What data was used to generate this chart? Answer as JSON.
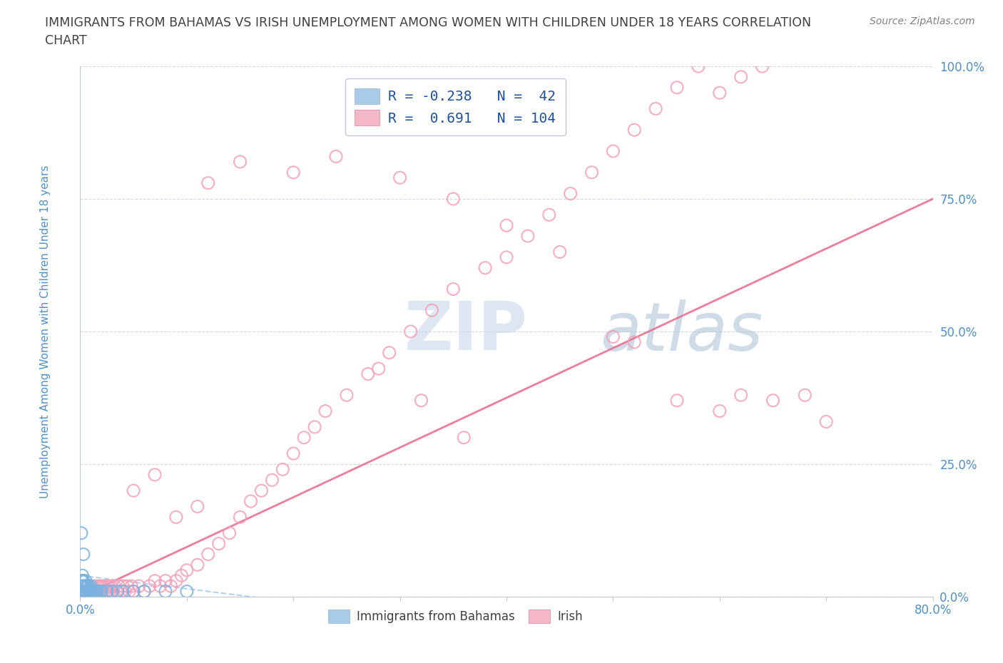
{
  "title_line1": "IMMIGRANTS FROM BAHAMAS VS IRISH UNEMPLOYMENT AMONG WOMEN WITH CHILDREN UNDER 18 YEARS CORRELATION",
  "title_line2": "CHART",
  "source": "Source: ZipAtlas.com",
  "ylabel": "Unemployment Among Women with Children Under 18 years",
  "x_min": 0.0,
  "x_max": 0.8,
  "y_min": 0.0,
  "y_max": 1.0,
  "bahamas_R": -0.238,
  "bahamas_N": 42,
  "irish_R": 0.691,
  "irish_N": 104,
  "scatter_color_bahamas": "#7ab3e0",
  "scatter_color_irish": "#f4a0b8",
  "line_color_bahamas": "#a0c8e8",
  "line_color_irish": "#e87090",
  "legend_color_bahamas": "#a8cce8",
  "legend_color_irish": "#f4b8c8",
  "watermark_zip": "ZIP",
  "watermark_atlas": "atlas",
  "watermark_color_zip": "#c8d8e8",
  "watermark_color_atlas": "#b0c8d8",
  "background_color": "#ffffff",
  "title_color": "#404040",
  "axis_label_color": "#5090c8",
  "tick_label_color": "#5090c8",
  "legend_text_color": "#2050a0",
  "grid_color": "#d0d8e8",
  "irish_x": [
    0.003,
    0.004,
    0.005,
    0.006,
    0.007,
    0.008,
    0.009,
    0.01,
    0.011,
    0.012,
    0.013,
    0.014,
    0.015,
    0.016,
    0.017,
    0.018,
    0.019,
    0.02,
    0.021,
    0.022,
    0.023,
    0.024,
    0.025,
    0.026,
    0.027,
    0.028,
    0.029,
    0.03,
    0.032,
    0.034,
    0.036,
    0.038,
    0.04,
    0.042,
    0.044,
    0.046,
    0.048,
    0.05,
    0.055,
    0.06,
    0.065,
    0.07,
    0.075,
    0.08,
    0.085,
    0.09,
    0.095,
    0.1,
    0.11,
    0.12,
    0.13,
    0.14,
    0.15,
    0.16,
    0.17,
    0.18,
    0.19,
    0.2,
    0.21,
    0.22,
    0.23,
    0.25,
    0.27,
    0.29,
    0.31,
    0.33,
    0.35,
    0.38,
    0.4,
    0.42,
    0.44,
    0.46,
    0.48,
    0.5,
    0.52,
    0.54,
    0.56,
    0.58,
    0.6,
    0.62,
    0.64,
    0.12,
    0.15,
    0.2,
    0.24,
    0.3,
    0.35,
    0.4,
    0.45,
    0.5,
    0.28,
    0.32,
    0.36,
    0.52,
    0.56,
    0.6,
    0.62,
    0.65,
    0.68,
    0.7,
    0.05,
    0.07,
    0.09,
    0.11
  ],
  "irish_y": [
    0.01,
    0.01,
    0.02,
    0.01,
    0.02,
    0.01,
    0.01,
    0.02,
    0.01,
    0.02,
    0.01,
    0.01,
    0.02,
    0.01,
    0.02,
    0.01,
    0.02,
    0.01,
    0.02,
    0.01,
    0.02,
    0.01,
    0.02,
    0.01,
    0.02,
    0.01,
    0.02,
    0.01,
    0.02,
    0.01,
    0.02,
    0.01,
    0.02,
    0.01,
    0.02,
    0.01,
    0.02,
    0.01,
    0.02,
    0.01,
    0.02,
    0.03,
    0.02,
    0.03,
    0.02,
    0.03,
    0.04,
    0.05,
    0.06,
    0.08,
    0.1,
    0.12,
    0.15,
    0.18,
    0.2,
    0.22,
    0.24,
    0.27,
    0.3,
    0.32,
    0.35,
    0.38,
    0.42,
    0.46,
    0.5,
    0.54,
    0.58,
    0.62,
    0.64,
    0.68,
    0.72,
    0.76,
    0.8,
    0.84,
    0.88,
    0.92,
    0.96,
    1.0,
    0.95,
    0.98,
    1.0,
    0.78,
    0.82,
    0.8,
    0.83,
    0.79,
    0.75,
    0.7,
    0.65,
    0.49,
    0.43,
    0.37,
    0.3,
    0.48,
    0.37,
    0.35,
    0.38,
    0.37,
    0.38,
    0.33,
    0.2,
    0.23,
    0.15,
    0.17
  ],
  "bahamas_x": [
    0.001,
    0.001,
    0.001,
    0.002,
    0.002,
    0.002,
    0.002,
    0.003,
    0.003,
    0.003,
    0.004,
    0.004,
    0.005,
    0.005,
    0.005,
    0.006,
    0.006,
    0.007,
    0.007,
    0.008,
    0.008,
    0.009,
    0.01,
    0.01,
    0.011,
    0.012,
    0.013,
    0.014,
    0.015,
    0.016,
    0.018,
    0.02,
    0.025,
    0.03,
    0.035,
    0.04,
    0.05,
    0.06,
    0.08,
    0.1,
    0.001,
    0.003
  ],
  "bahamas_y": [
    0.01,
    0.02,
    0.03,
    0.01,
    0.02,
    0.03,
    0.04,
    0.01,
    0.02,
    0.03,
    0.01,
    0.02,
    0.01,
    0.02,
    0.03,
    0.01,
    0.02,
    0.01,
    0.02,
    0.01,
    0.02,
    0.01,
    0.01,
    0.02,
    0.01,
    0.01,
    0.01,
    0.01,
    0.01,
    0.01,
    0.01,
    0.01,
    0.01,
    0.01,
    0.01,
    0.01,
    0.01,
    0.01,
    0.01,
    0.01,
    0.12,
    0.08
  ]
}
